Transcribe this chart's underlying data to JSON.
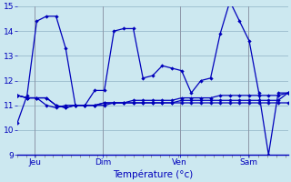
{
  "background_color": "#cce8f0",
  "line_color": "#0000bb",
  "grid_color": "#99bbcc",
  "xlabel": "Température (°c)",
  "xlabel_color": "#0000bb",
  "tick_label_color": "#0000bb",
  "ylim": [
    9,
    15
  ],
  "yticks": [
    9,
    10,
    11,
    12,
    13,
    14,
    15
  ],
  "day_labels": [
    "Jeu",
    "Dim",
    "Ven",
    "Sam"
  ],
  "day_positions": [
    0.065,
    0.315,
    0.6,
    0.855
  ],
  "series": [
    [
      10.3,
      11.4,
      14.4,
      14.6,
      14.6,
      13.3,
      11.0,
      11.0,
      11.6,
      11.6,
      14.0,
      14.1,
      14.1,
      12.1,
      12.2,
      12.6,
      12.5,
      12.4,
      11.5,
      12.0,
      12.1,
      13.9,
      15.2,
      14.4,
      13.6,
      11.5,
      9.0,
      11.5,
      11.5
    ],
    [
      11.4,
      11.3,
      11.3,
      11.3,
      11.0,
      10.9,
      11.0,
      11.0,
      11.0,
      11.1,
      11.1,
      11.1,
      11.1,
      11.1,
      11.1,
      11.1,
      11.1,
      11.2,
      11.2,
      11.2,
      11.2,
      11.2,
      11.2,
      11.2,
      11.2,
      11.2,
      11.2,
      11.2,
      11.5
    ],
    [
      11.4,
      11.3,
      11.3,
      11.0,
      10.9,
      11.0,
      11.0,
      11.0,
      11.0,
      11.0,
      11.1,
      11.1,
      11.1,
      11.1,
      11.1,
      11.1,
      11.1,
      11.1,
      11.1,
      11.1,
      11.1,
      11.1,
      11.1,
      11.1,
      11.1,
      11.1,
      11.1,
      11.1,
      11.1
    ],
    [
      11.4,
      11.3,
      11.3,
      11.3,
      11.0,
      10.9,
      11.0,
      11.0,
      11.0,
      11.1,
      11.1,
      11.1,
      11.2,
      11.2,
      11.2,
      11.2,
      11.2,
      11.3,
      11.3,
      11.3,
      11.3,
      11.4,
      11.4,
      11.4,
      11.4,
      11.4,
      11.4,
      11.4,
      11.5
    ]
  ],
  "num_points": 29
}
